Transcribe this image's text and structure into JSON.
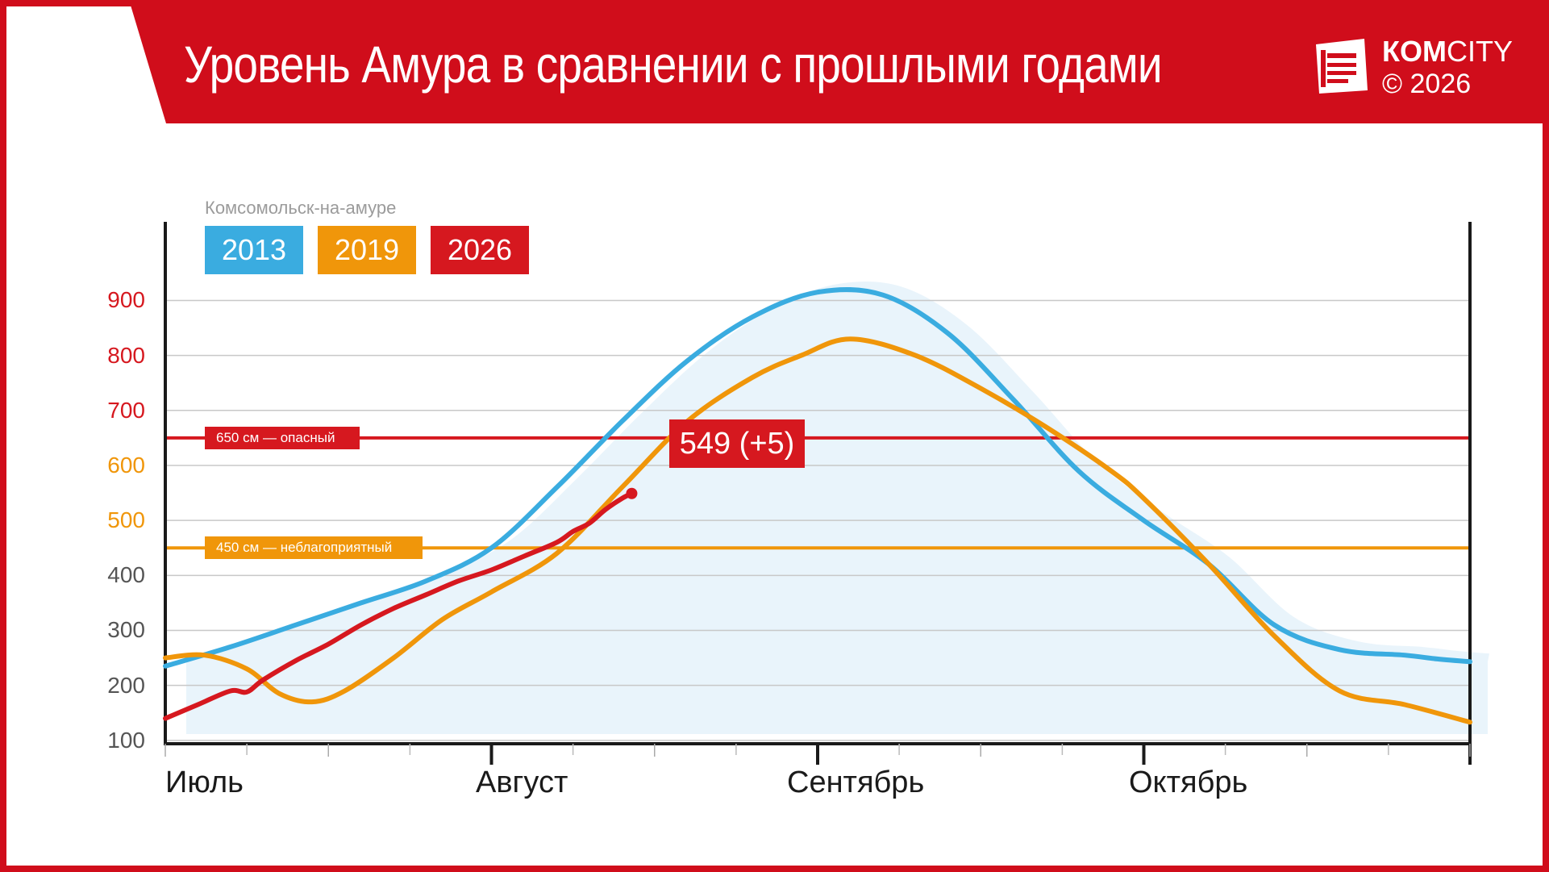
{
  "header": {
    "title": "Уровень Амура в сравнении с прошлыми годами",
    "logo_strong": "КОМ",
    "logo_rest": "CITY",
    "copyright": "© 2026",
    "color": "#d00d1b"
  },
  "chart_data": {
    "type": "line",
    "title": "Уровень Амура в сравнении с прошлыми годами",
    "subtitle": "Комсомольск-на-амуре",
    "ylim": [
      0,
      950
    ],
    "yticks": [
      100,
      200,
      300,
      400,
      500,
      600,
      700,
      800,
      900
    ],
    "ytick_colors": {
      "100": "#555555",
      "200": "#555555",
      "300": "#555555",
      "400": "#555555",
      "500": "#f0960a",
      "600": "#f0960a",
      "700": "#d6181f",
      "800": "#d6181f",
      "900": "#d6181f"
    },
    "xlim": [
      0,
      4
    ],
    "months": [
      "Июль",
      "Август",
      "Сентябрь",
      "Октябрь"
    ],
    "grid": true,
    "legend_position": "top-left",
    "thresholds": [
      {
        "value": 650,
        "label": "650 см — опасный",
        "color": "#d6181f"
      },
      {
        "value": 450,
        "label": "450 см — неблагоприятный",
        "color": "#f0960a"
      }
    ],
    "series": [
      {
        "name": "2013",
        "color": "#3aace0",
        "x": [
          0,
          0.2,
          0.4,
          0.6,
          0.8,
          1.0,
          1.2,
          1.4,
          1.6,
          1.8,
          2.0,
          2.2,
          2.4,
          2.6,
          2.8,
          3.0,
          3.2,
          3.4,
          3.6,
          3.8,
          3.9,
          4.0
        ],
        "values": [
          235,
          270,
          310,
          350,
          390,
          450,
          560,
          680,
          790,
          870,
          915,
          910,
          840,
          720,
          590,
          500,
          420,
          310,
          265,
          255,
          248,
          243
        ]
      },
      {
        "name": "2019",
        "color": "#f0960a",
        "x": [
          0,
          0.12,
          0.25,
          0.35,
          0.45,
          0.55,
          0.7,
          0.85,
          1.0,
          1.2,
          1.4,
          1.6,
          1.8,
          1.95,
          2.1,
          2.3,
          2.5,
          2.7,
          2.9,
          3.0,
          3.2,
          3.4,
          3.6,
          3.8,
          4.0
        ],
        "values": [
          250,
          255,
          230,
          185,
          170,
          190,
          250,
          320,
          370,
          440,
          560,
          680,
          760,
          800,
          830,
          800,
          740,
          670,
          590,
          540,
          420,
          290,
          190,
          165,
          133
        ]
      },
      {
        "name": "2026",
        "color": "#d6181f",
        "x": [
          0,
          0.1,
          0.2,
          0.25,
          0.3,
          0.4,
          0.5,
          0.6,
          0.7,
          0.8,
          0.9,
          1.0,
          1.1,
          1.2,
          1.25,
          1.3,
          1.35,
          1.4,
          1.43
        ],
        "values": [
          140,
          165,
          190,
          188,
          210,
          245,
          275,
          310,
          340,
          365,
          390,
          410,
          435,
          460,
          480,
          495,
          520,
          540,
          549
        ]
      }
    ],
    "annotation": {
      "series": "2026",
      "text": "549 (+5)",
      "x": 1.43,
      "y": 549
    }
  }
}
